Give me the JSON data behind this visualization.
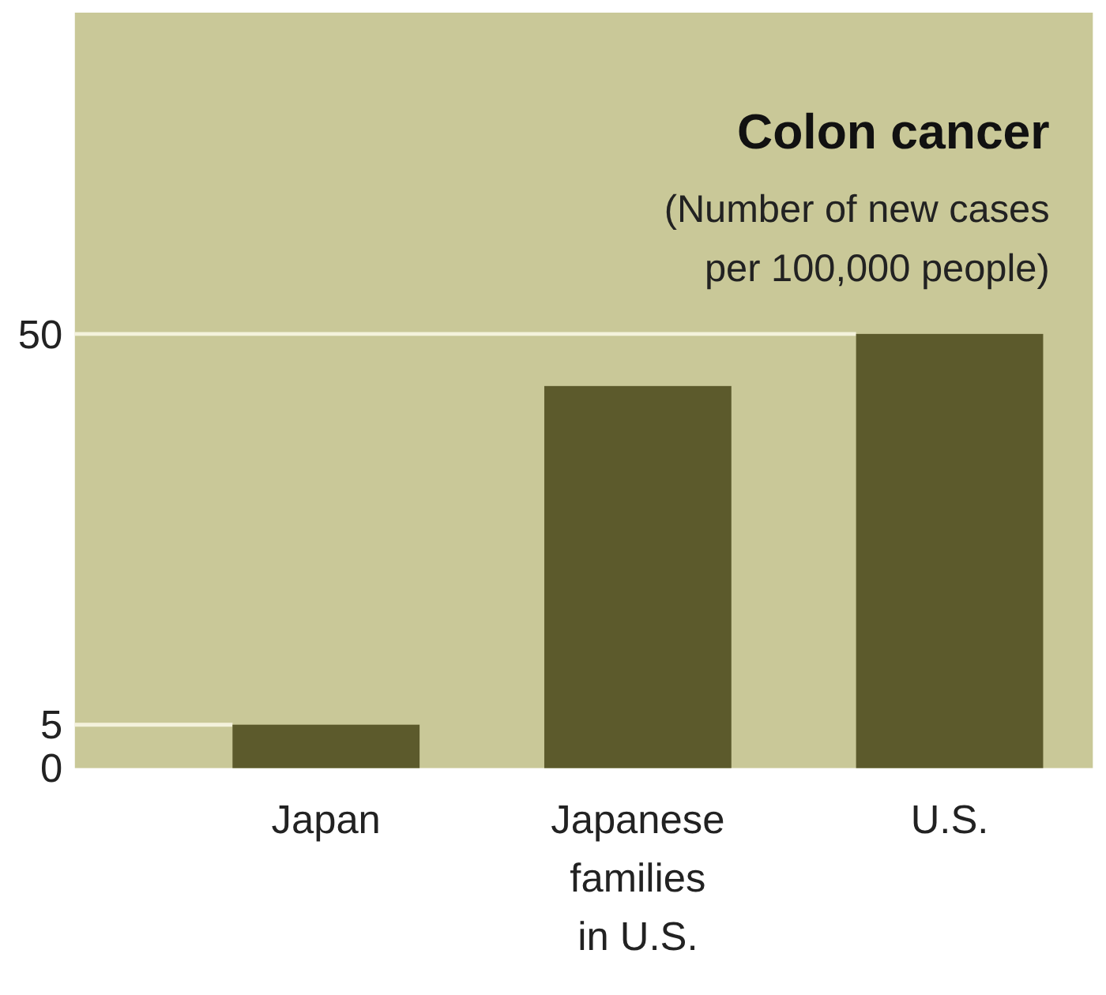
{
  "chart_data": {
    "type": "bar",
    "title": "Colon cancer",
    "subtitle": "(Number of new cases per 100,000 people)",
    "categories": [
      "Japan",
      "Japanese families in U.S.",
      "U.S."
    ],
    "values": [
      5,
      44,
      50
    ],
    "color": "#5c5a2c",
    "ylim": [
      0,
      87
    ],
    "yticks": [
      0,
      5,
      50
    ],
    "ref_lines": [
      {
        "axis": "y",
        "value": 5,
        "color": "#f4f2dc"
      },
      {
        "axis": "y",
        "value": 50,
        "color": "#f4f2dc"
      }
    ]
  }
}
